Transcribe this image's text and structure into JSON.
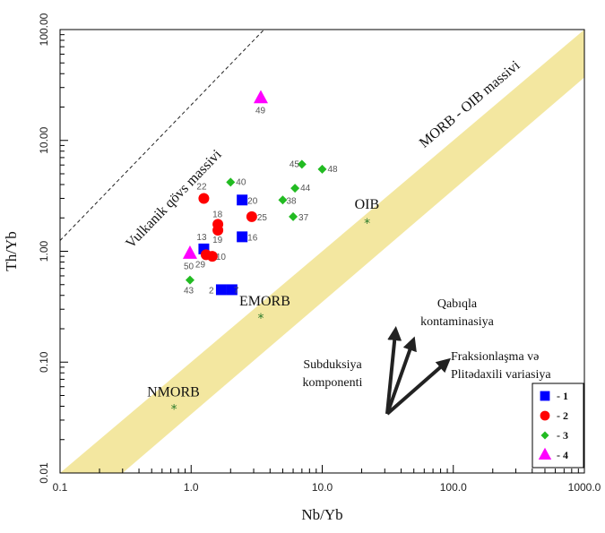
{
  "chart_data": {
    "type": "scatter",
    "xlabel": "Nb/Yb",
    "ylabel": "Th/Yb",
    "x_scale": "log",
    "y_scale": "log",
    "xlim": [
      0.1,
      1000
    ],
    "ylim": [
      0.01,
      100
    ],
    "x_ticks": [
      "0.1",
      "1.0",
      "10.0",
      "100.0",
      "1000.0"
    ],
    "y_ticks": [
      "0.01",
      "0.10",
      "1.00",
      "10.00",
      "100.00"
    ],
    "grid": false,
    "legend_position": "bottom-right",
    "colors": {
      "s1": "#0000ff",
      "s2": "#ff0000",
      "s3": "#22bb22",
      "s4": "#ff00ff",
      "band": "#f3e7a0",
      "ref": "#2a7a2a"
    },
    "series": [
      {
        "name": "- 1",
        "marker": "square",
        "color": "#0000ff",
        "points": [
          {
            "x": 1.25,
            "y": 1.05,
            "label": "13"
          },
          {
            "x": 2.45,
            "y": 2.9,
            "label": "20"
          },
          {
            "x": 2.45,
            "y": 1.35,
            "label": "16"
          },
          {
            "x": 1.7,
            "y": 0.45,
            "label": "2"
          },
          {
            "x": 2.05,
            "y": 0.45,
            "label": "7"
          }
        ]
      },
      {
        "name": "- 2",
        "marker": "circle",
        "color": "#ff0000",
        "points": [
          {
            "x": 1.25,
            "y": 3.0,
            "label": "22"
          },
          {
            "x": 1.6,
            "y": 1.75,
            "label": "18"
          },
          {
            "x": 1.6,
            "y": 1.55,
            "label": "19"
          },
          {
            "x": 2.9,
            "y": 2.05,
            "label": "25"
          },
          {
            "x": 1.3,
            "y": 0.93,
            "label": "29"
          },
          {
            "x": 1.45,
            "y": 0.9,
            "label": "10"
          }
        ]
      },
      {
        "name": "- 3",
        "marker": "diamond",
        "color": "#22bb22",
        "points": [
          {
            "x": 2.0,
            "y": 4.2,
            "label": "40"
          },
          {
            "x": 7.0,
            "y": 6.1,
            "label": "45"
          },
          {
            "x": 10.0,
            "y": 5.5,
            "label": "48"
          },
          {
            "x": 6.2,
            "y": 3.7,
            "label": "44"
          },
          {
            "x": 5.0,
            "y": 2.9,
            "label": "38"
          },
          {
            "x": 6.0,
            "y": 2.05,
            "label": "37"
          },
          {
            "x": 0.98,
            "y": 0.55,
            "label": "43"
          }
        ]
      },
      {
        "name": "- 4",
        "marker": "triangle",
        "color": "#ff00ff",
        "points": [
          {
            "x": 3.4,
            "y": 24.0,
            "label": "49"
          },
          {
            "x": 0.98,
            "y": 0.95,
            "label": "50"
          }
        ]
      }
    ],
    "reference_points": [
      {
        "label": "NMORB",
        "x": 0.74,
        "y": 0.038
      },
      {
        "label": "EMORB",
        "x": 3.4,
        "y": 0.25
      },
      {
        "label": "OIB",
        "x": 22.0,
        "y": 1.8
      }
    ],
    "band": {
      "label": "MORB - OIB massivi",
      "lower_edge": [
        [
          0.3,
          0.01
        ],
        [
          1000,
          37
        ]
      ],
      "upper_edge": [
        [
          0.1,
          0.01
        ],
        [
          1000,
          100
        ]
      ]
    },
    "dashed_line": {
      "label": "Vulkanik qövs massivi",
      "from": [
        0.1,
        1.25
      ],
      "to": [
        3.6,
        100
      ]
    },
    "annotations": {
      "contamination": "Qabıqla\nkontaminasiya",
      "fractionation": "Fraksionlaşma və\nPlitədaxili variasiya",
      "subduction": "Subduksiya\nkomponenti"
    }
  }
}
